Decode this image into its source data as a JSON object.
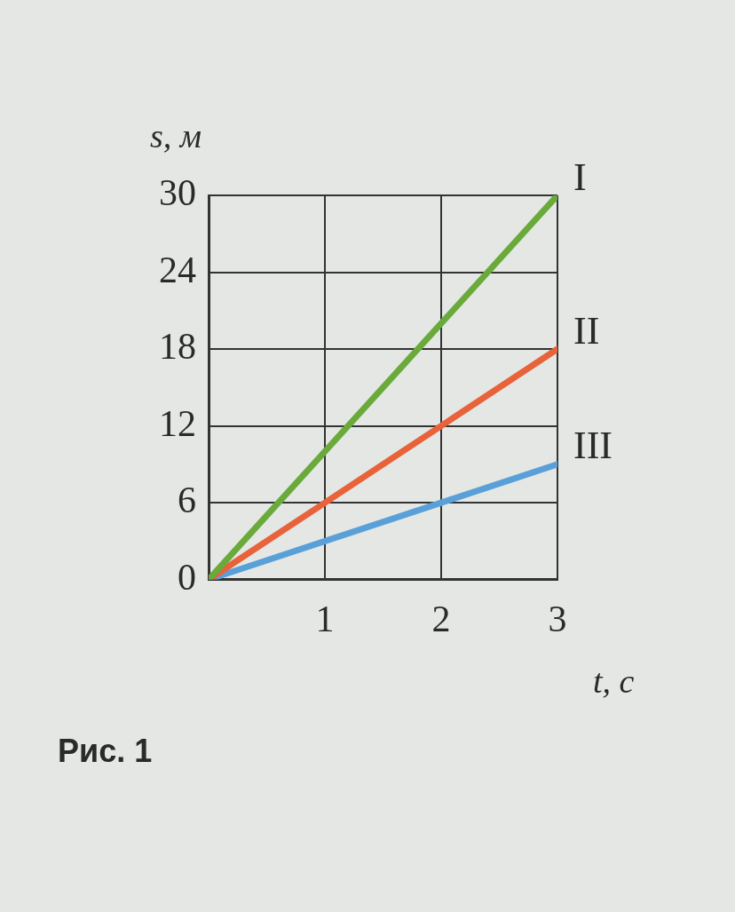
{
  "chart_data": {
    "type": "line",
    "xlabel": "t, с",
    "ylabel": "s, м",
    "x": [
      0,
      1,
      2,
      3
    ],
    "series": [
      {
        "name": "I",
        "color": "#6aaa3a",
        "values": [
          0,
          10,
          20,
          30
        ]
      },
      {
        "name": "II",
        "color": "#e8623a",
        "values": [
          0,
          6,
          12,
          18
        ]
      },
      {
        "name": "III",
        "color": "#5aa0d8",
        "values": [
          0,
          3,
          6,
          9
        ]
      }
    ],
    "xlim": [
      0,
      3
    ],
    "xticks": [
      {
        "value": 0,
        "label": null
      },
      1,
      2,
      3
    ],
    "ylim": [
      0,
      30
    ],
    "yticks": [
      0,
      6,
      12,
      18,
      24,
      30
    ],
    "grid": true,
    "legend": false,
    "marker": "none",
    "line_style": "solid",
    "annotations": [
      "Рис. 1"
    ]
  }
}
